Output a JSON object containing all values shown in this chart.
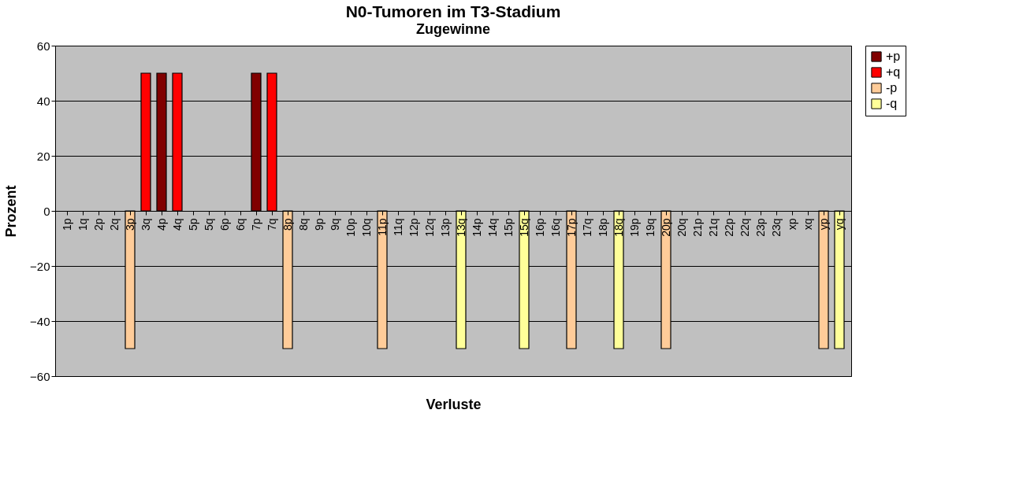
{
  "chart_data": {
    "type": "bar",
    "title": "N0-Tumoren im T3-Stadium",
    "subtitle": "Zugewinne",
    "xlabel": "Verluste",
    "ylabel": "Prozent",
    "categories": [
      "1p",
      "1q",
      "2p",
      "2q",
      "3p",
      "3q",
      "4p",
      "4q",
      "5p",
      "5q",
      "6p",
      "6q",
      "7p",
      "7q",
      "8p",
      "8q",
      "9p",
      "9q",
      "10p",
      "10q",
      "11p",
      "11q",
      "12p",
      "12q",
      "13p",
      "13q",
      "14p",
      "14q",
      "15p",
      "15q",
      "16p",
      "16q",
      "17p",
      "17q",
      "18p",
      "18q",
      "19p",
      "19q",
      "20p",
      "20q",
      "21p",
      "21q",
      "22p",
      "22q",
      "23p",
      "23q",
      "xp",
      "xq",
      "yp",
      "yq"
    ],
    "series": [
      {
        "name": "+p",
        "color": "#800000",
        "values": [
          null,
          null,
          null,
          null,
          null,
          null,
          50,
          null,
          null,
          null,
          null,
          null,
          50,
          null,
          null,
          null,
          null,
          null,
          null,
          null,
          null,
          null,
          null,
          null,
          null,
          null,
          null,
          null,
          null,
          null,
          null,
          null,
          null,
          null,
          null,
          null,
          null,
          null,
          null,
          null,
          null,
          null,
          null,
          null,
          null,
          null,
          null,
          null,
          null,
          null
        ]
      },
      {
        "name": "+q",
        "color": "#ff0000",
        "values": [
          null,
          null,
          null,
          null,
          null,
          50,
          null,
          50,
          null,
          null,
          null,
          null,
          null,
          50,
          null,
          null,
          null,
          null,
          null,
          null,
          null,
          null,
          null,
          null,
          null,
          null,
          null,
          null,
          null,
          null,
          null,
          null,
          null,
          null,
          null,
          null,
          null,
          null,
          null,
          null,
          null,
          null,
          null,
          null,
          null,
          null,
          null,
          null,
          null,
          null
        ]
      },
      {
        "name": "-p",
        "color": "#ffcc99",
        "values": [
          null,
          null,
          null,
          null,
          -50,
          null,
          null,
          null,
          null,
          null,
          null,
          null,
          null,
          null,
          -50,
          null,
          null,
          null,
          null,
          null,
          -50,
          null,
          null,
          null,
          null,
          null,
          null,
          null,
          null,
          null,
          null,
          null,
          -50,
          null,
          null,
          null,
          null,
          null,
          -50,
          null,
          null,
          null,
          null,
          null,
          null,
          null,
          null,
          null,
          -50,
          null
        ]
      },
      {
        "name": "-q",
        "color": "#ffff99",
        "values": [
          null,
          null,
          null,
          null,
          null,
          null,
          null,
          null,
          null,
          null,
          null,
          null,
          null,
          null,
          null,
          null,
          null,
          null,
          null,
          null,
          null,
          null,
          null,
          null,
          null,
          -50,
          null,
          null,
          null,
          -50,
          null,
          null,
          null,
          null,
          null,
          -50,
          null,
          null,
          null,
          null,
          null,
          null,
          null,
          null,
          null,
          null,
          null,
          null,
          null,
          -50
        ]
      }
    ],
    "ylim": [
      -60,
      60
    ],
    "yticks": [
      -60,
      -40,
      -20,
      0,
      20,
      40,
      60
    ],
    "grid": "y",
    "legend": "right"
  }
}
